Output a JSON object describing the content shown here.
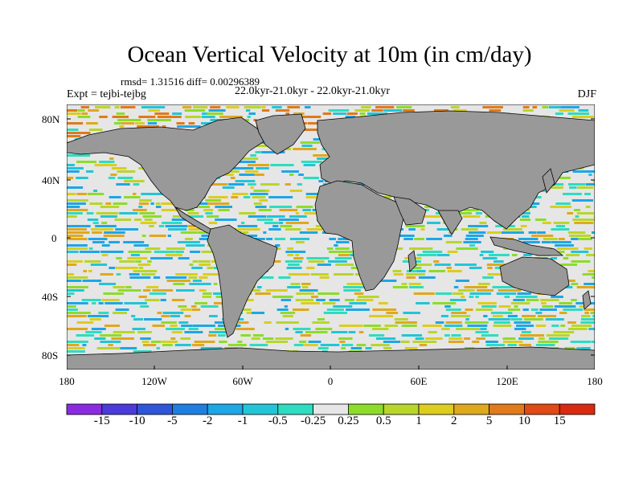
{
  "title": "Ocean Vertical Velocity at 10m (in cm/day)",
  "stats": "rmsd= 1.31516 diff= 0.00296389",
  "experiment": "Expt = tejbi-tejbg",
  "period": "22.0kyr-21.0kyr - 22.0kyr-21.0kyr",
  "season": "DJF",
  "lat_ticks": [
    "80N",
    "40N",
    "0",
    "40S",
    "80S"
  ],
  "lon_ticks": [
    "180",
    "120W",
    "60W",
    "0",
    "60E",
    "120E",
    "180"
  ],
  "colorbar": {
    "labels": [
      "-15",
      "-10",
      "-5",
      "-2",
      "-1",
      "-0.5",
      "-0.25",
      "0.25",
      "0.5",
      "1",
      "2",
      "5",
      "10",
      "15"
    ],
    "colors": [
      "#8a2be2",
      "#4b3bdb",
      "#2f56d8",
      "#1f7fe0",
      "#1ea6e6",
      "#22c5d6",
      "#2edcc0",
      "#e6e6e6",
      "#8ddc2a",
      "#b8d62a",
      "#dccd1e",
      "#e0a81c",
      "#e07a1a",
      "#e04a14",
      "#d82a10"
    ]
  },
  "map_colors": {
    "land": "#999999",
    "ocean_neutral": "#e6e6e6",
    "coast": "#000000"
  }
}
